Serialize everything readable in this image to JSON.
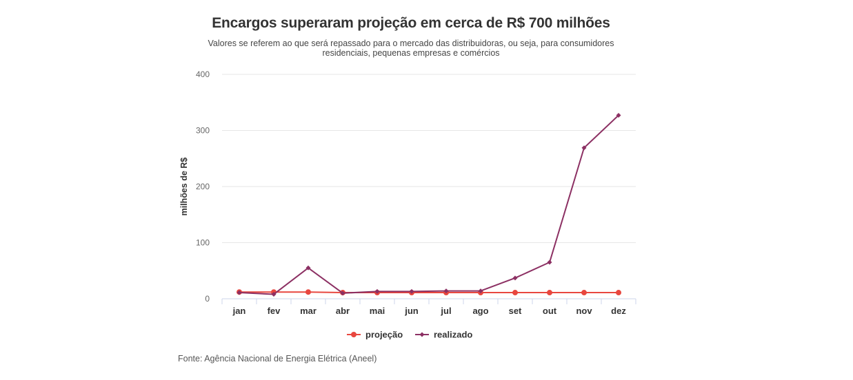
{
  "header": {
    "title": "Encargos superaram projeção em cerca de R$ 700 milhões",
    "subtitle": "Valores se referem ao que será repassado para o mercado das distribuidoras, ou seja, para consumidores residenciais, pequenas empresas e comércios"
  },
  "footer": {
    "source": "Fonte: Agência Nacional de Energia Elétrica (Aneel)"
  },
  "chart_data": {
    "type": "line",
    "title": "Encargos superaram projeção em cerca de R$ 700 milhões",
    "subtitle": "Valores se referem ao que será repassado para o mercado das distribuidoras, ou seja, para consumidores residenciais, pequenas empresas e comércios",
    "ylabel": "milhões de R$",
    "xlabel": "",
    "categories": [
      "jan",
      "fev",
      "mar",
      "abr",
      "mai",
      "jun",
      "jul",
      "ago",
      "set",
      "out",
      "nov",
      "dez"
    ],
    "ylim": [
      0,
      400
    ],
    "yticks": [
      0,
      100,
      200,
      300,
      400
    ],
    "grid": true,
    "legend_position": "bottom",
    "series": [
      {
        "name": "projeção",
        "color": "#e8473f",
        "marker": "circle",
        "values": [
          12,
          12,
          12,
          11,
          11,
          11,
          11,
          11,
          11,
          11,
          11,
          11
        ]
      },
      {
        "name": "realizado",
        "color": "#8c3063",
        "marker": "diamond",
        "values": [
          11,
          8,
          55,
          10,
          13,
          13,
          14,
          14,
          37,
          65,
          269,
          327
        ]
      }
    ]
  }
}
